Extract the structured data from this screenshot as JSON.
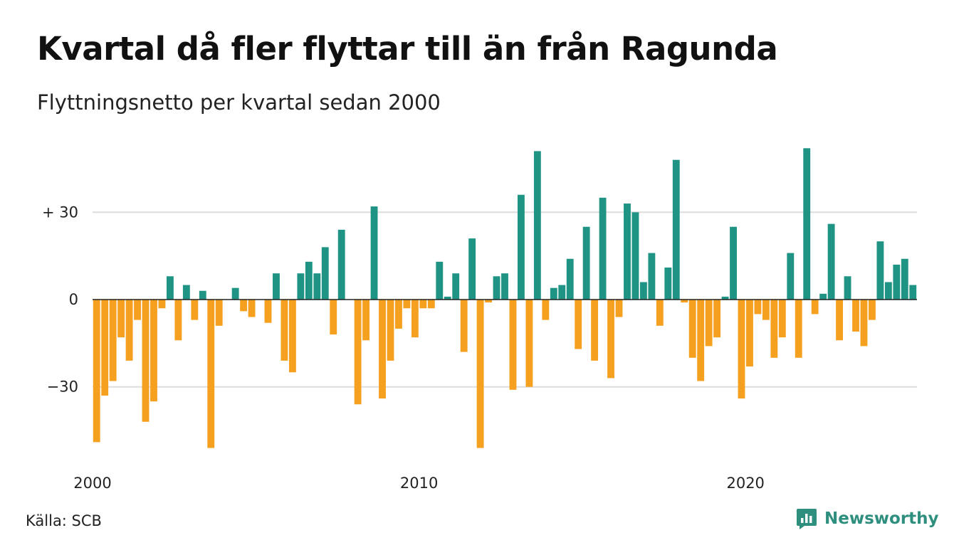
{
  "title": "Kvartal då fler flyttar till än från Ragunda",
  "subtitle": "Flyttningsnetto per kvartal sedan 2000",
  "source": "Källa: SCB",
  "brand": {
    "name": "Newsworthy",
    "icon": "newsworthy-logo-icon"
  },
  "colors": {
    "positive": "#1f9484",
    "negative": "#f5a01f",
    "grid": "#dddddd",
    "axis": "#222222"
  },
  "chart_data": {
    "type": "bar",
    "xlabel": "",
    "ylabel": "",
    "x_ticks": [
      "2000",
      "2010",
      "2020"
    ],
    "y_ticks": [
      {
        "value": 30,
        "label": "+ 30"
      },
      {
        "value": 0,
        "label": "0"
      },
      {
        "value": -30,
        "label": "−30"
      }
    ],
    "ylim": [
      -57,
      56
    ],
    "grid": true,
    "start": "2000 Q1",
    "values": [
      -49,
      -33,
      -28,
      -13,
      -21,
      -7,
      -42,
      -35,
      -3,
      8,
      -14,
      5,
      -7,
      3,
      -51,
      -9,
      0,
      4,
      -4,
      -6,
      0,
      -8,
      9,
      -21,
      -25,
      9,
      13,
      9,
      18,
      -12,
      24,
      0,
      -36,
      -14,
      32,
      -34,
      -21,
      -10,
      -3,
      -13,
      -3,
      -3,
      13,
      1,
      9,
      -18,
      21,
      -51,
      -1,
      8,
      9,
      -31,
      36,
      -30,
      51,
      -7,
      4,
      5,
      14,
      -17,
      25,
      -21,
      35,
      -27,
      -6,
      33,
      30,
      6,
      16,
      -9,
      11,
      48,
      -1,
      -20,
      -28,
      -16,
      -13,
      1,
      25,
      -34,
      -23,
      -5,
      -7,
      -20,
      -13,
      16,
      -20,
      52,
      -5,
      2,
      26,
      -14,
      8,
      -11,
      -16,
      -7,
      20,
      6,
      12,
      14,
      5
    ]
  }
}
